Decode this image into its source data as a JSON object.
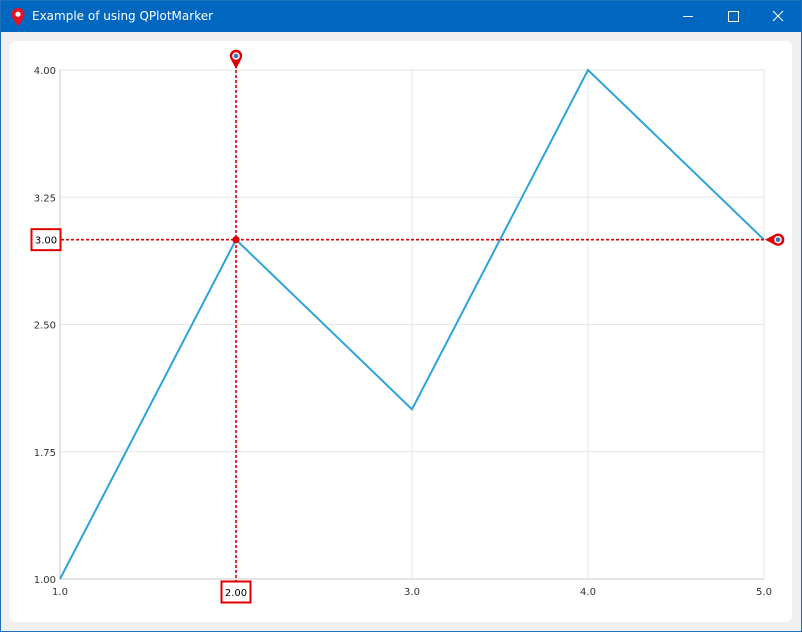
{
  "window": {
    "title": "Example of using QPlotMarker",
    "icon": "map-pin-icon"
  },
  "chart_data": {
    "type": "line",
    "x": [
      1.0,
      2.0,
      3.0,
      4.0,
      5.0
    ],
    "series": [
      {
        "values": [
          1.0,
          3.0,
          2.0,
          4.0,
          3.0
        ],
        "color": "#2ea3d9"
      }
    ],
    "xlim": [
      1.0,
      5.0
    ],
    "ylim": [
      1.0,
      4.0
    ],
    "x_ticks": [
      "1.0",
      "2.0",
      "3.0",
      "4.0",
      "5.0"
    ],
    "x_tick_values": [
      1.0,
      2.0,
      3.0,
      4.0,
      5.0
    ],
    "y_ticks": [
      "1.00",
      "1.75",
      "2.50",
      "3.25",
      "4.00"
    ],
    "y_tick_values": [
      1.0,
      1.75,
      2.5,
      3.25,
      4.0
    ],
    "grid": true,
    "markers": {
      "vertical": {
        "x": 2.0,
        "label": "2.00",
        "color": "#e00000"
      },
      "horizontal": {
        "y": 3.0,
        "label": "3.00",
        "color": "#e00000"
      }
    }
  }
}
